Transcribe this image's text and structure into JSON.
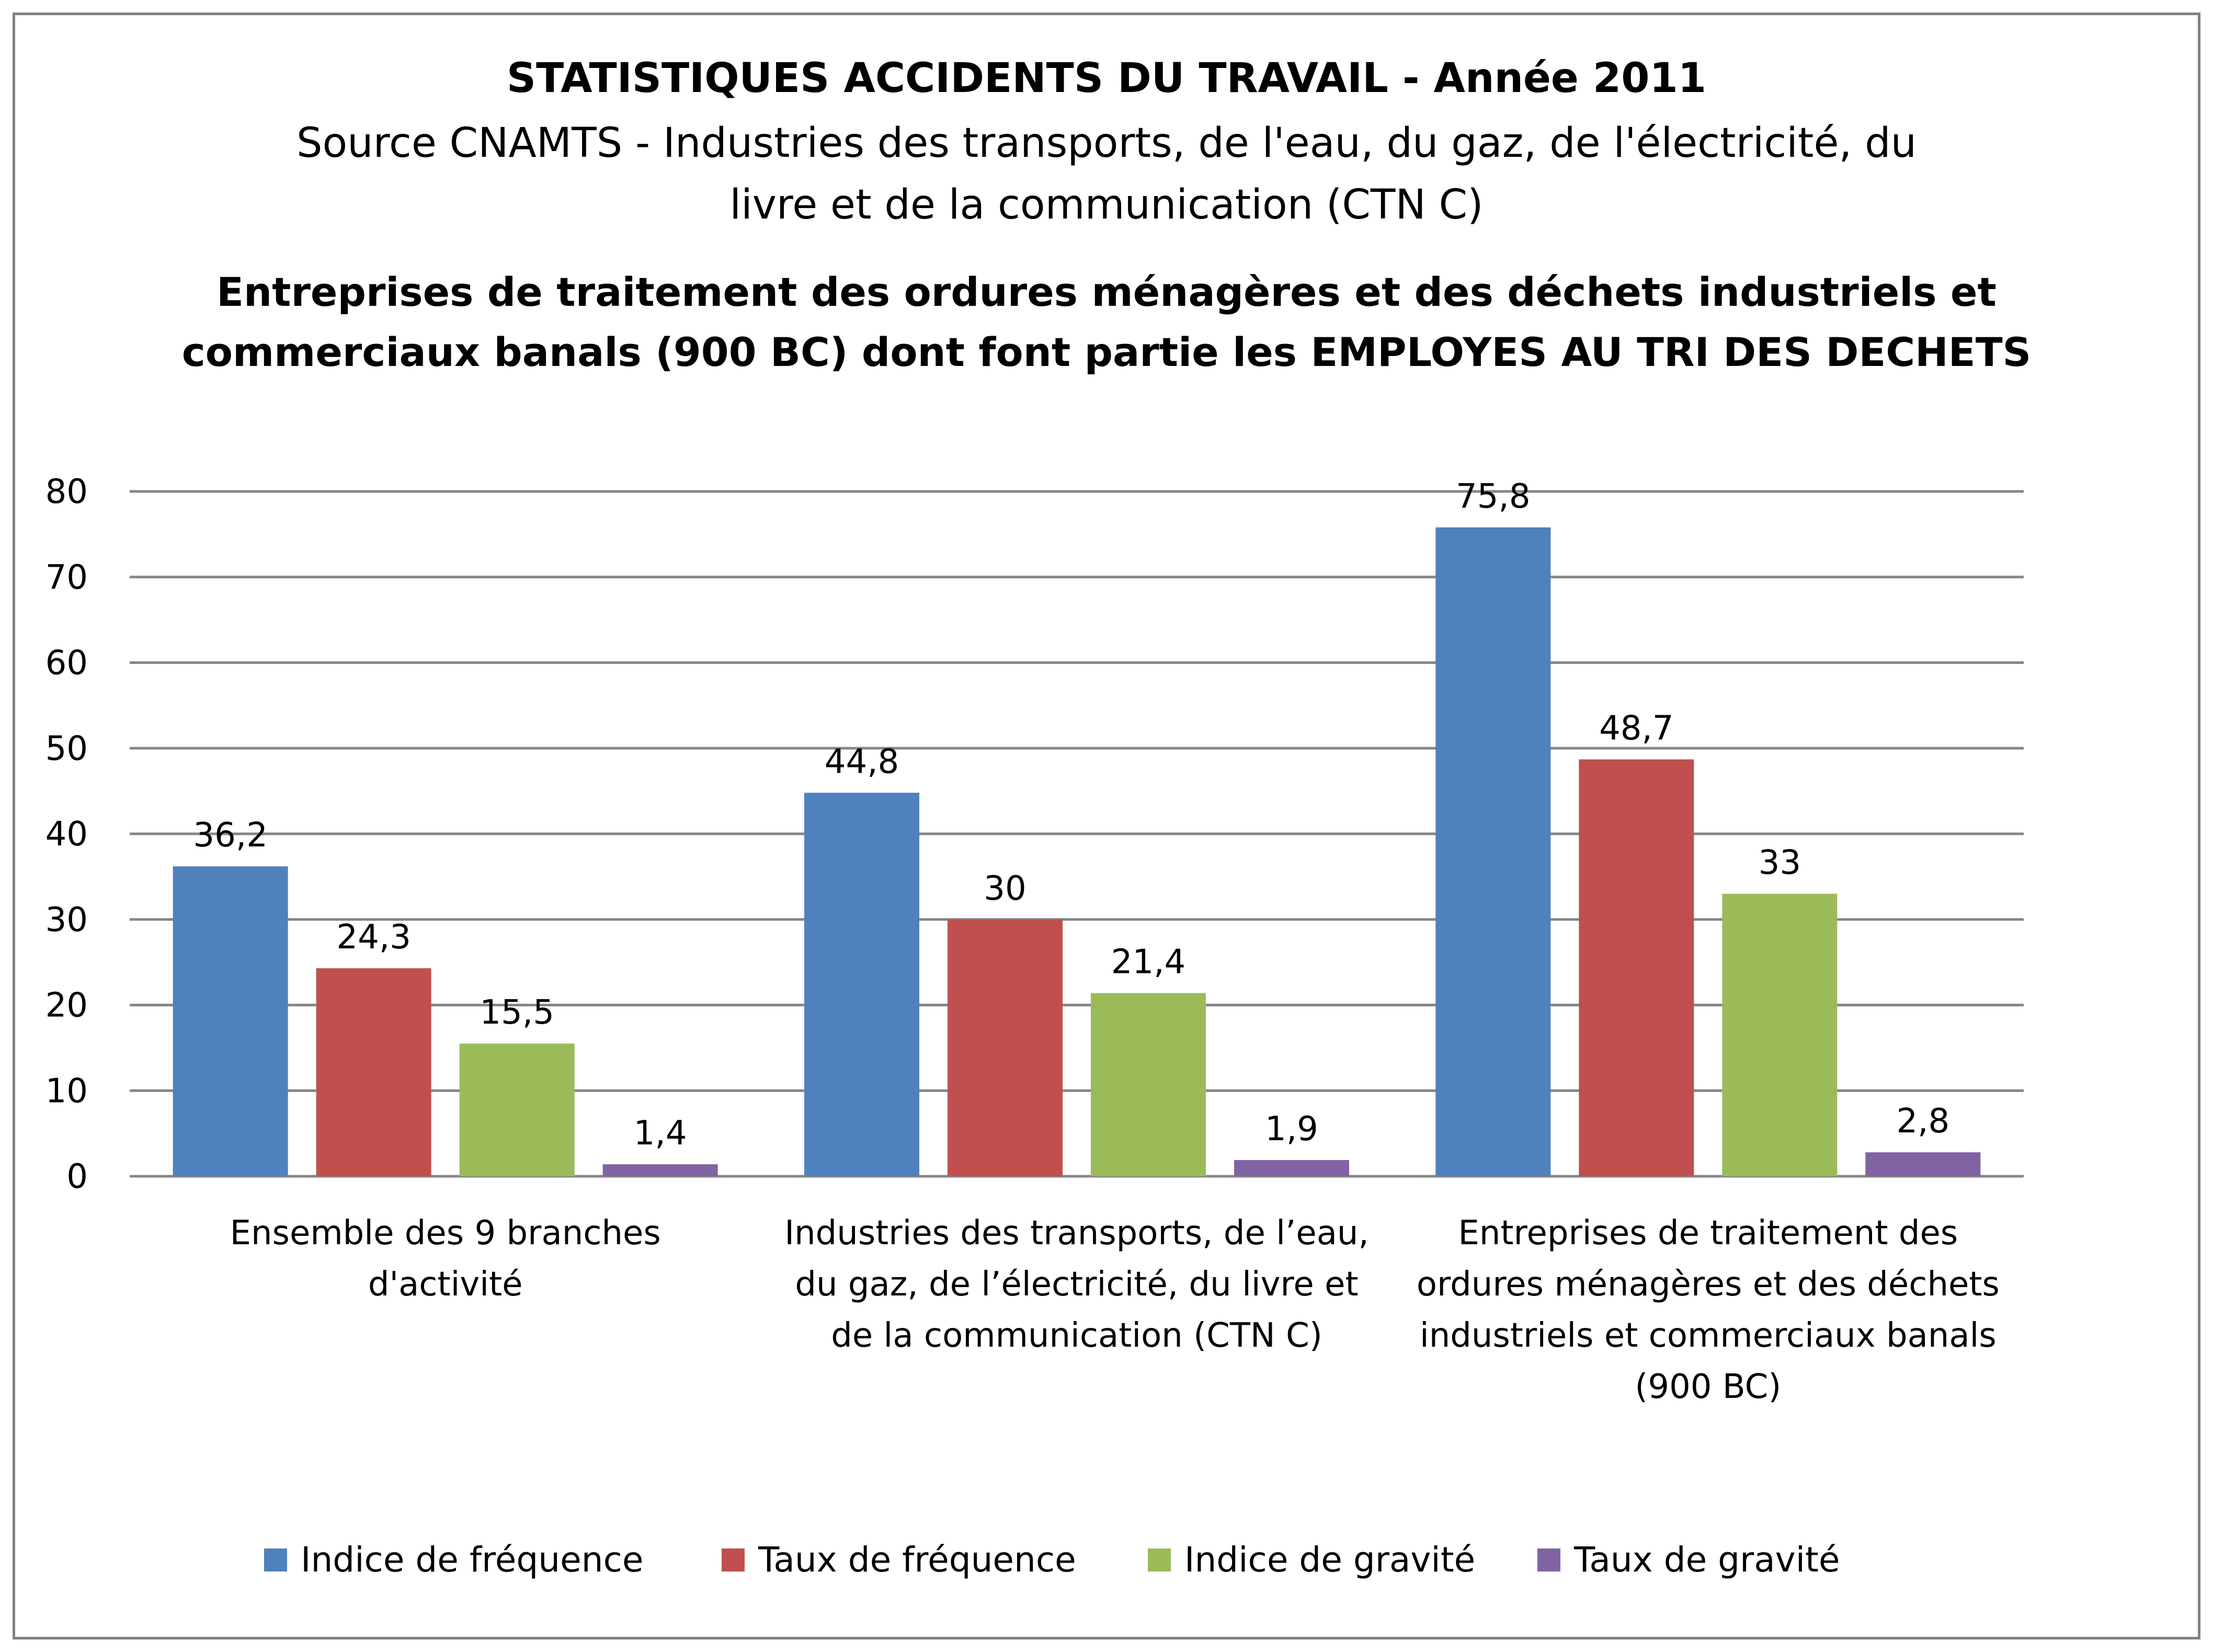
{
  "chart_data": {
    "type": "bar",
    "title": "STATISTIQUES ACCIDENTS DU TRAVAIL - Année 2011",
    "subtitle_lines": [
      "Source CNAMTS - Industries des transports, de l'eau, du gaz, de l'électricité, du",
      "livre et de la communication  (CTN C)"
    ],
    "subtitle2_lines": [
      "Entreprises de traitement des ordures ménagères et des déchets industriels et",
      "commerciaux banals (900 BC) dont font partie les EMPLOYES AU TRI DES DECHETS"
    ],
    "categories": [
      [
        "Ensemble des 9 branches",
        "d'activité"
      ],
      [
        "Industries des transports, de l’eau,",
        "du gaz, de l’électricité, du livre et",
        "de la communication (CTN C)"
      ],
      [
        "Entreprises de traitement des",
        "ordures ménagères et des déchets",
        "industriels et commerciaux banals",
        "(900 BC)"
      ]
    ],
    "series": [
      {
        "name": "Indice de fréquence",
        "color": "#4F81BD",
        "values": [
          36.2,
          44.8,
          75.8
        ],
        "labels": [
          "36,2",
          "44,8",
          "75,8"
        ]
      },
      {
        "name": "Taux de fréquence",
        "color": "#C0504D",
        "values": [
          24.3,
          30,
          48.7
        ],
        "labels": [
          "24,3",
          "30",
          "48,7"
        ]
      },
      {
        "name": "Indice de gravité",
        "color": "#9BBB59",
        "values": [
          15.5,
          21.4,
          33
        ],
        "labels": [
          "15,5",
          "21,4",
          "33"
        ]
      },
      {
        "name": "Taux de gravité",
        "color": "#8064A2",
        "values": [
          1.4,
          1.9,
          2.8
        ],
        "labels": [
          "1,4",
          "1,9",
          "2,8"
        ]
      }
    ],
    "ylim": [
      0,
      80
    ],
    "yticks": [
      0,
      10,
      20,
      30,
      40,
      50,
      60,
      70,
      80
    ],
    "grid": true,
    "legend_position": "bottom"
  }
}
